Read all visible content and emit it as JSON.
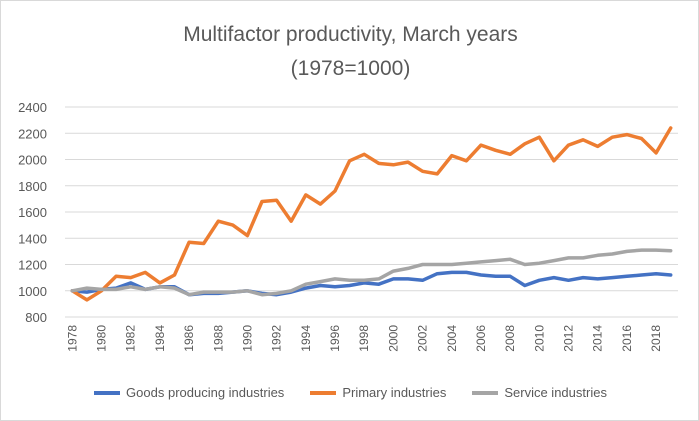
{
  "chart_data": {
    "type": "line",
    "title": "Multifactor productivity, March years",
    "subtitle": "(1978=1000)",
    "xlabel": "",
    "ylabel": "",
    "ylim": [
      800,
      2400
    ],
    "yticks": [
      "800",
      "1000",
      "1200",
      "1400",
      "1600",
      "1800",
      "2000",
      "2200",
      "2400"
    ],
    "grid": true,
    "legend": "bottom",
    "x": [
      1978,
      1979,
      1980,
      1981,
      1982,
      1983,
      1984,
      1985,
      1986,
      1987,
      1988,
      1989,
      1990,
      1991,
      1992,
      1993,
      1994,
      1995,
      1996,
      1997,
      1998,
      1999,
      2000,
      2001,
      2002,
      2003,
      2004,
      2005,
      2006,
      2007,
      2008,
      2009,
      2010,
      2011,
      2012,
      2013,
      2014,
      2015,
      2016,
      2017,
      2018,
      2019
    ],
    "xticks": [
      "1978",
      "1980",
      "1982",
      "1984",
      "1986",
      "1988",
      "1990",
      "1992",
      "1994",
      "1996",
      "1998",
      "2000",
      "2002",
      "2004",
      "2006",
      "2008",
      "2010",
      "2012",
      "2014",
      "2016",
      "2018"
    ],
    "series": [
      {
        "name": "Goods producing industries",
        "color": "#4472c4",
        "values": [
          1000,
          990,
          1010,
          1020,
          1060,
          1010,
          1030,
          1030,
          970,
          980,
          980,
          990,
          1000,
          980,
          970,
          990,
          1020,
          1040,
          1030,
          1040,
          1060,
          1050,
          1090,
          1090,
          1080,
          1130,
          1140,
          1140,
          1120,
          1110,
          1110,
          1040,
          1080,
          1100,
          1080,
          1100,
          1090,
          1100,
          1110,
          1120,
          1130,
          1120
        ]
      },
      {
        "name": "Primary industries",
        "color": "#ed7d31",
        "values": [
          1000,
          930,
          1000,
          1110,
          1100,
          1140,
          1060,
          1120,
          1370,
          1360,
          1530,
          1500,
          1420,
          1680,
          1690,
          1530,
          1730,
          1660,
          1760,
          1990,
          2040,
          1970,
          1960,
          1980,
          1910,
          1890,
          2030,
          1990,
          2110,
          2070,
          2040,
          2120,
          2170,
          1990,
          2110,
          2150,
          2100,
          2170,
          2190,
          2160,
          2050,
          2240
        ]
      },
      {
        "name": "Service industries",
        "color": "#a5a5a5",
        "values": [
          1000,
          1020,
          1010,
          1010,
          1030,
          1010,
          1030,
          1020,
          970,
          990,
          990,
          990,
          1000,
          970,
          980,
          1000,
          1050,
          1070,
          1090,
          1080,
          1080,
          1090,
          1150,
          1170,
          1200,
          1200,
          1200,
          1210,
          1220,
          1230,
          1240,
          1200,
          1210,
          1230,
          1250,
          1250,
          1270,
          1280,
          1300,
          1310,
          1310,
          1305
        ]
      }
    ]
  }
}
